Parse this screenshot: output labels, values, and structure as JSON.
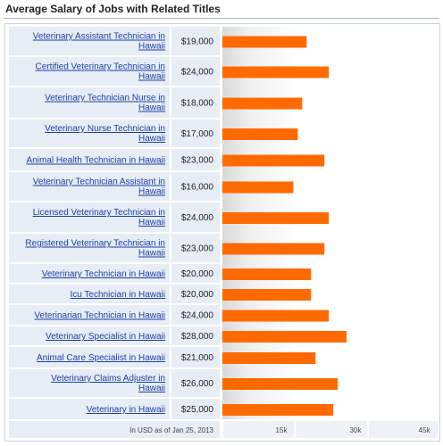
{
  "title": "Average Salary of Jobs with Related Titles",
  "footnote": "In USD as of Jan 25, 2013",
  "colors": {
    "bar": "#ff6a00",
    "row_bg": "#e6edf4",
    "row_border": "#ffffff",
    "link": "#1f3ea8",
    "value_text": "#222222",
    "axis_text": "#444444"
  },
  "chart_data": {
    "type": "bar",
    "orientation": "horizontal",
    "title": "Average Salary of Jobs with Related Titles",
    "categories": [
      "Veterinary Assistant Technician in Hawaii",
      "Certified Veterinary Technician in Hawaii",
      "Veterinary Technician Nurse in Hawaii",
      "Veterinary Nurse Technician in Hawaii",
      "Animal Health Technician in Hawaii",
      "Veterinary Technician Assistant in Hawaii",
      "Licensed Veterinary Technician in Hawaii",
      "Registered Veterinary Technician in Hawaii",
      "Veterinary Technician in Hawaii",
      "Icu Technician in Hawaii",
      "Veterinarian Technician in Hawaii",
      "Veterinary Specialist in Hawaii",
      "Animal Care Specialist in Hawaii",
      "Veterinary Claims Adjuster in Hawaii",
      "Veterinary in Hawaii"
    ],
    "label_lines": [
      [
        "Veterinary Assistant Technician in",
        "Hawaii"
      ],
      [
        "Certified Veterinary Technician in",
        "Hawaii"
      ],
      [
        "Veterinary Technician Nurse in",
        "Hawaii"
      ],
      [
        "Veterinary Nurse Technician in",
        "Hawaii"
      ],
      [
        "Animal Health Technician in Hawaii"
      ],
      [
        "Veterinary Technician Assistant in",
        "Hawaii"
      ],
      [
        "Licensed Veterinary Technician in",
        "Hawaii"
      ],
      [
        "Registered Veterinary Technician in",
        "Hawaii"
      ],
      [
        "Veterinary Technician in Hawaii"
      ],
      [
        "Icu Technician in Hawaii"
      ],
      [
        "Veterinarian Technician in Hawaii"
      ],
      [
        "Veterinary Specialist in Hawaii"
      ],
      [
        "Animal Care Specialist in Hawaii"
      ],
      [
        "Veterinary Claims Adjuster in",
        "Hawaii"
      ],
      [
        "Veterinary in Hawaii"
      ]
    ],
    "values": [
      19000,
      24000,
      18000,
      17000,
      23000,
      16000,
      24000,
      23000,
      20000,
      20000,
      24000,
      28000,
      21000,
      26000,
      25000
    ],
    "value_labels": [
      "$19,000",
      "$24,000",
      "$18,000",
      "$17,000",
      "$23,000",
      "$16,000",
      "$24,000",
      "$23,000",
      "$20,000",
      "$20,000",
      "$24,000",
      "$28,000",
      "$21,000",
      "$26,000",
      "$25,000"
    ],
    "x_ticks": [
      15000,
      30000,
      45000
    ],
    "x_tick_labels": [
      "15k",
      "30k",
      "45k"
    ],
    "xlim": [
      0,
      45000
    ],
    "grid": false,
    "legend": "none"
  }
}
